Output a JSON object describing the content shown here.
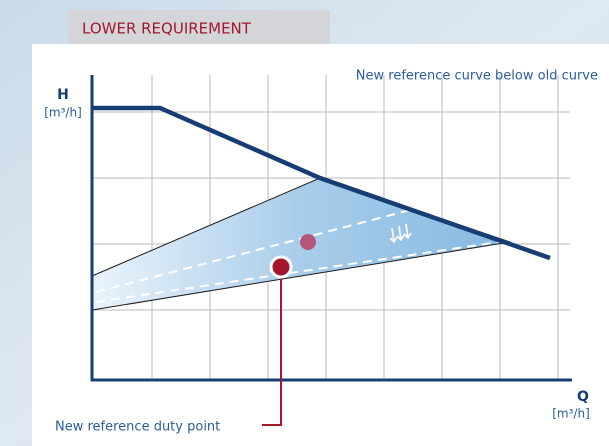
{
  "header": {
    "tab": "LOWER REQUIREMENT"
  },
  "annotation": {
    "top": "New reference curve below old curve"
  },
  "axes": {
    "y": {
      "label": "H",
      "unit": "[m³/h]"
    },
    "x": {
      "label": "Q",
      "unit": "[m³/h]"
    }
  },
  "callout": {
    "label": "New reference duty point"
  }
}
